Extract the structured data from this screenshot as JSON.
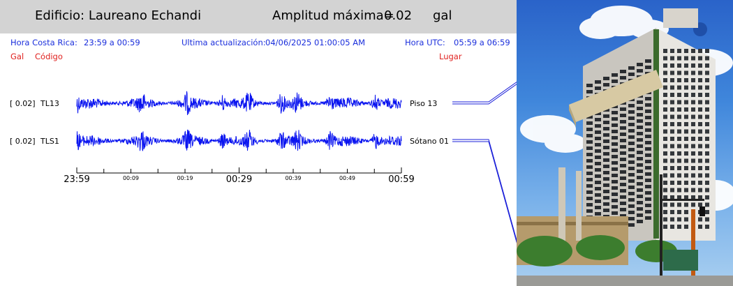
{
  "header": {
    "building_label": "Edificio: Laureano Echandi",
    "amplitude_label": "Amplitud máxima=",
    "amplitude_value": "0.02",
    "amplitude_unit": "gal"
  },
  "info": {
    "cr_time_label": "Hora Costa Rica:",
    "cr_time_value": "23:59 a 00:59",
    "update_label": "Ultima actualización:",
    "update_value": "04/06/2025 01:00:05 AM",
    "utc_label": "Hora UTC:",
    "utc_value": "05:59 a 06:59",
    "col_gal": "Gal",
    "col_code": "Código",
    "col_place": "Lugar"
  },
  "colors": {
    "trace": "#0a14f0",
    "info_text": "#1a2edc",
    "column_header": "#e0211f",
    "header_bg": "#d3d3d3"
  },
  "chart_data": {
    "type": "line",
    "title": "",
    "x_ticks_major": [
      "23:59",
      "00:29",
      "00:59"
    ],
    "x_ticks_minor": [
      "00:09",
      "00:19",
      "00:39",
      "00:49"
    ],
    "x_range": [
      "23:59",
      "00:59"
    ],
    "series": [
      {
        "gal": "[  0.02]",
        "code": "TL13",
        "place": "Piso 13",
        "peak_gal": 0.02
      },
      {
        "gal": "[  0.02]",
        "code": "TLS1",
        "place": "Sótano 01",
        "peak_gal": 0.02
      }
    ]
  },
  "photo": {
    "icon": "building-photo"
  }
}
